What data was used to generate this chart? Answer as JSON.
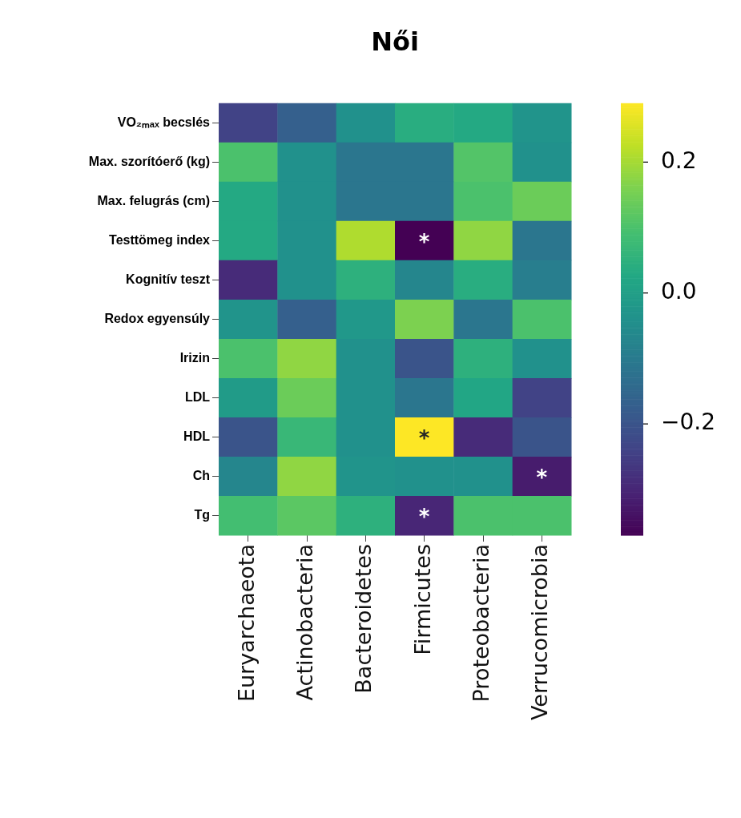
{
  "chart_data": {
    "type": "heatmap",
    "title": "Női",
    "categories": [
      "Euryarchaeota",
      "Actinobacteria",
      "Bacteroidetes",
      "Firmicutes",
      "Proteobacteria",
      "Verrucomicrobia"
    ],
    "y_categories": [
      "VO₂ₘₐₓ becslés",
      "Max. szorítóerő (kg)",
      "Max. felugrás (cm)",
      "Testtömeg index",
      "Kognitív teszt",
      "Redox egyensúly",
      "Irizin",
      "LDL",
      "HDL",
      "Ch",
      "Tg"
    ],
    "cells": [
      [
        -0.24,
        -0.17,
        -0.04,
        0.04,
        0.03,
        -0.03
      ],
      [
        0.1,
        -0.04,
        -0.11,
        -0.11,
        0.11,
        -0.04
      ],
      [
        0.03,
        -0.04,
        -0.11,
        -0.11,
        0.1,
        0.14
      ],
      [
        0.03,
        -0.04,
        0.21,
        -0.37,
        0.18,
        -0.11
      ],
      [
        -0.29,
        -0.04,
        0.05,
        -0.07,
        0.04,
        -0.09
      ],
      [
        -0.03,
        -0.17,
        -0.02,
        0.16,
        -0.11,
        0.1
      ],
      [
        0.1,
        0.18,
        -0.04,
        -0.2,
        0.05,
        -0.04
      ],
      [
        -0.01,
        0.14,
        -0.04,
        -0.11,
        0.02,
        -0.24
      ],
      [
        -0.2,
        0.07,
        -0.04,
        0.29,
        -0.29,
        -0.2
      ],
      [
        -0.07,
        0.18,
        -0.03,
        -0.04,
        -0.04,
        -0.32
      ],
      [
        0.09,
        0.12,
        0.05,
        -0.3,
        0.1,
        0.1
      ]
    ],
    "cell_labels": [
      [
        null,
        null,
        null,
        null,
        null,
        null
      ],
      [
        null,
        null,
        null,
        null,
        null,
        null
      ],
      [
        null,
        null,
        null,
        null,
        null,
        null
      ],
      [
        null,
        null,
        null,
        "*",
        null,
        null
      ],
      [
        null,
        null,
        null,
        null,
        null,
        null
      ],
      [
        null,
        null,
        null,
        null,
        null,
        null
      ],
      [
        null,
        null,
        null,
        null,
        null,
        null
      ],
      [
        null,
        null,
        null,
        null,
        null,
        null
      ],
      [
        null,
        null,
        null,
        "*",
        null,
        null
      ],
      [
        null,
        null,
        null,
        null,
        null,
        "*"
      ],
      [
        null,
        null,
        null,
        "*",
        null,
        null
      ]
    ],
    "clim": [
      -0.37,
      0.29
    ],
    "cticks": [
      {
        "value": -0.2,
        "label": "−0.2"
      },
      {
        "value": 0,
        "label": "0.0"
      },
      {
        "value": 0.2,
        "label": "0.2"
      }
    ]
  }
}
